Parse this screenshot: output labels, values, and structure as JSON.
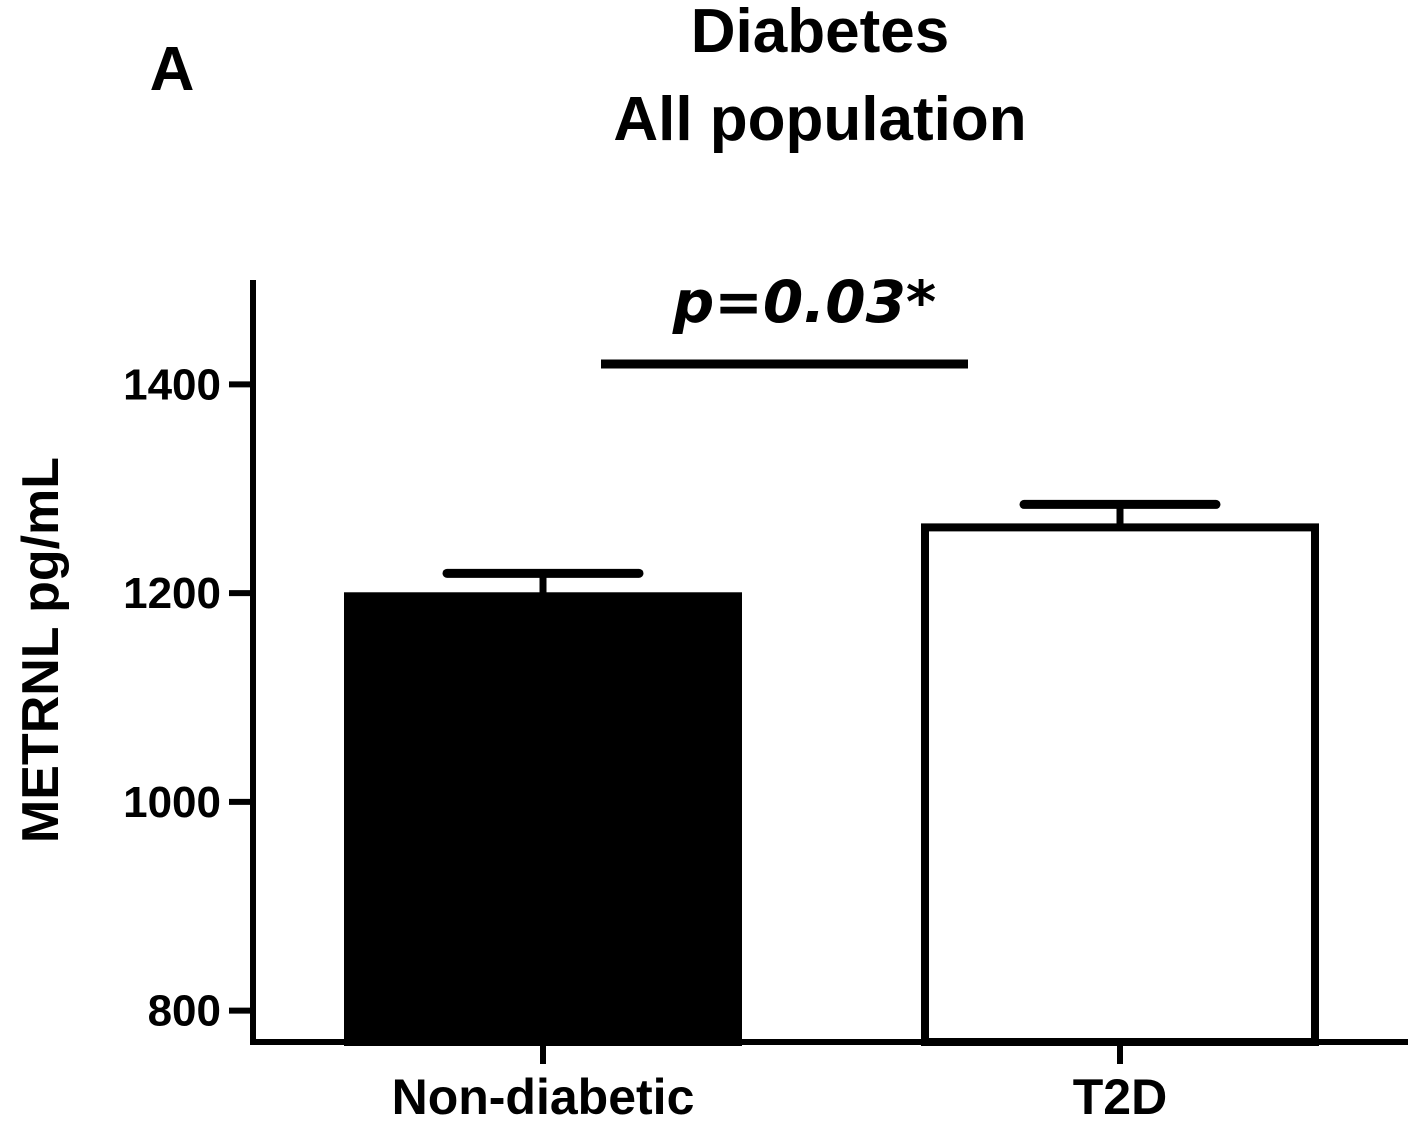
{
  "panel_label": "A",
  "chart_data": {
    "type": "bar",
    "title": "Diabetes",
    "subtitle": "All population",
    "xlabel": "",
    "ylabel": "METRNL pg/mL",
    "categories": [
      "Non-diabetic",
      "T2D"
    ],
    "values": [
      1197,
      1263
    ],
    "error_upper": [
      1219,
      1285
    ],
    "bar_fill": [
      "#000000",
      "#ffffff"
    ],
    "ylim": [
      770,
      1500
    ],
    "yticks": [
      800,
      1000,
      1200,
      1400
    ],
    "ytick_labels": [
      "800",
      "1000",
      "1200",
      "1400"
    ],
    "grid": false,
    "legend": "none",
    "annotation": {
      "text": "p=0.03*",
      "between": [
        "Non-diabetic",
        "T2D"
      ]
    }
  }
}
